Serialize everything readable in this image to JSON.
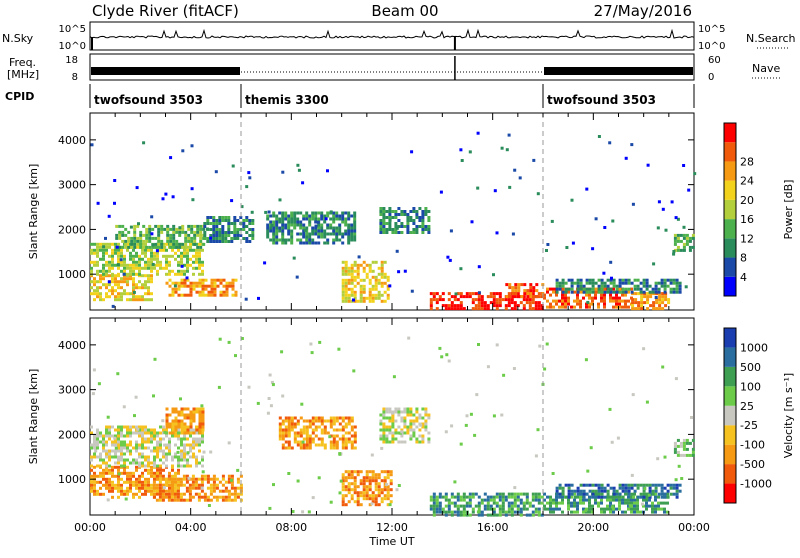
{
  "header": {
    "station": "Clyde River (fitACF)",
    "beam": "Beam 00",
    "date": "27/May/2016"
  },
  "panel_labels": {
    "nsky": "N.Sky",
    "nsearch": "N.Search",
    "freq_line1": "Freq.",
    "freq_line2": "[MHz]",
    "nave": "Nave",
    "cpid": "CPID",
    "nsky_ticks": [
      "10^5",
      "10^0"
    ],
    "nsearch_ticks": [
      "10^5",
      "10^0"
    ],
    "freq_ticks": [
      "18",
      "8"
    ],
    "nave_ticks": [
      "60",
      "0"
    ]
  },
  "cpid_segments": [
    {
      "label": "twofsound 3503",
      "start": 0,
      "end": 6
    },
    {
      "label": "themis 3300",
      "start": 6,
      "end": 18
    },
    {
      "label": "twofsound 3503",
      "start": 18,
      "end": 24
    }
  ],
  "colors": {
    "power": [
      "#0000ff",
      "#1a49a8",
      "#2a8b5b",
      "#4cb04c",
      "#b3cf3b",
      "#f2d21c",
      "#f59a12",
      "#f05a0a",
      "#ff0000"
    ],
    "velocity": [
      "#ff0000",
      "#f05a0a",
      "#f59a12",
      "#f5c220",
      "#c8c8c0",
      "#6ccc4a",
      "#3e9e52",
      "#2a6ea0",
      "#1a3eb0"
    ]
  },
  "chart_data": [
    {
      "type": "heatmap",
      "name_key": "power",
      "ylabel": "Slant Range [km]",
      "yticks": [
        1000,
        2000,
        3000,
        4000
      ],
      "ylim": [
        200,
        4600
      ],
      "xlim": [
        0,
        24
      ],
      "colorbar_label": "Power [dB]",
      "colorbar_ticks": [
        "4",
        "8",
        "12",
        "16",
        "20",
        "24",
        "28"
      ],
      "regions": [
        {
          "t0": 0.0,
          "t1": 2.5,
          "r0": 400,
          "r1": 1000,
          "level": 5
        },
        {
          "t0": 0.0,
          "t1": 4.5,
          "r0": 1000,
          "r1": 1700,
          "level": 4
        },
        {
          "t0": 1.0,
          "t1": 4.5,
          "r0": 1600,
          "r1": 2100,
          "level": 3
        },
        {
          "t0": 3.0,
          "t1": 5.8,
          "r0": 500,
          "r1": 900,
          "level": 6
        },
        {
          "t0": 4.5,
          "t1": 6.5,
          "r0": 1700,
          "r1": 2300,
          "level": 2
        },
        {
          "t0": 7.0,
          "t1": 10.5,
          "r0": 1700,
          "r1": 2400,
          "level": 2
        },
        {
          "t0": 10.0,
          "t1": 11.8,
          "r0": 400,
          "r1": 1300,
          "level": 5
        },
        {
          "t0": 11.5,
          "t1": 13.5,
          "r0": 1900,
          "r1": 2500,
          "level": 2
        },
        {
          "t0": 13.5,
          "t1": 18.0,
          "r0": 200,
          "r1": 600,
          "level": 8
        },
        {
          "t0": 16.5,
          "t1": 18.0,
          "r0": 500,
          "r1": 800,
          "level": 7
        },
        {
          "t0": 18.0,
          "t1": 21.5,
          "r0": 250,
          "r1": 700,
          "level": 7
        },
        {
          "t0": 21.5,
          "t1": 23.0,
          "r0": 250,
          "r1": 600,
          "level": 6
        },
        {
          "t0": 18.5,
          "t1": 23.5,
          "r0": 600,
          "r1": 900,
          "level": 2
        },
        {
          "t0": 23.2,
          "t1": 24.0,
          "r0": 1500,
          "r1": 1900,
          "level": 3
        }
      ]
    },
    {
      "type": "heatmap",
      "name_key": "velocity",
      "ylabel": "Slant Range [km]",
      "yticks": [
        1000,
        2000,
        3000,
        4000
      ],
      "ylim": [
        200,
        4600
      ],
      "xlim": [
        0,
        24
      ],
      "xlabel": "Time UT",
      "xticks": [
        "00:00",
        "04:00",
        "08:00",
        "12:00",
        "16:00",
        "20:00",
        "00:00"
      ],
      "colorbar_label": "Velocity [m s⁻¹]",
      "colorbar_ticks": [
        "-1000",
        "-500",
        "-100",
        "-25",
        "25",
        "100",
        "500",
        "1000"
      ],
      "regions": [
        {
          "t0": 0.0,
          "t1": 3.5,
          "r0": 600,
          "r1": 1300,
          "level": 2
        },
        {
          "t0": 0.0,
          "t1": 4.5,
          "r0": 1300,
          "r1": 2200,
          "level": 4
        },
        {
          "t0": 2.5,
          "t1": 6.0,
          "r0": 500,
          "r1": 1100,
          "level": 2
        },
        {
          "t0": 3.0,
          "t1": 4.5,
          "r0": 2000,
          "r1": 2600,
          "level": 2
        },
        {
          "t0": 7.5,
          "t1": 10.5,
          "r0": 1700,
          "r1": 2400,
          "level": 2
        },
        {
          "t0": 10.0,
          "t1": 12.0,
          "r0": 400,
          "r1": 1200,
          "level": 2
        },
        {
          "t0": 11.5,
          "t1": 13.5,
          "r0": 1800,
          "r1": 2600,
          "level": 4
        },
        {
          "t0": 13.5,
          "t1": 18.0,
          "r0": 200,
          "r1": 700,
          "level": 6
        },
        {
          "t0": 18.0,
          "t1": 23.0,
          "r0": 250,
          "r1": 700,
          "level": 6
        },
        {
          "t0": 18.5,
          "t1": 23.5,
          "r0": 600,
          "r1": 900,
          "level": 7
        },
        {
          "t0": 23.2,
          "t1": 24.0,
          "r0": 1500,
          "r1": 1900,
          "level": 5
        }
      ]
    }
  ]
}
